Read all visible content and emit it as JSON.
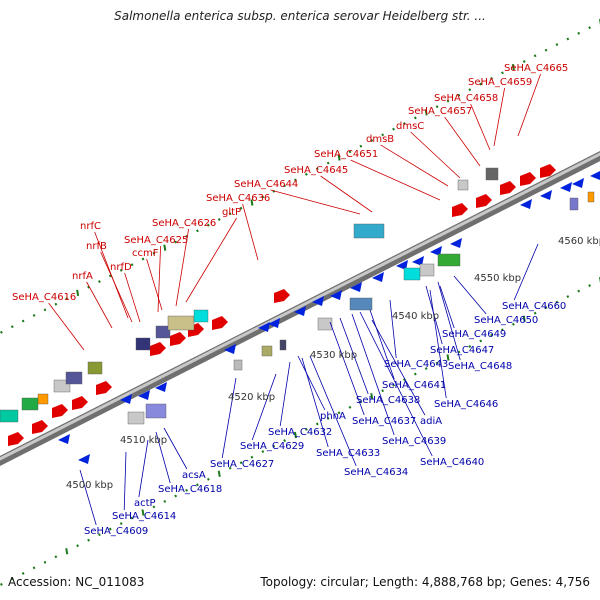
{
  "title": "Salmonella enterica subsp. enterica serovar Heidelberg str. ...",
  "footer": {
    "accession": "Accession: NC_011083",
    "summary": "Topology: circular; Length: 4,888,768 bp; Genes: 4,756"
  },
  "colors": {
    "upper_labels": "#cc0000",
    "lower_labels": "#0000aa",
    "backbone": "#9a9a9a",
    "ticks": "#1a7a1a"
  },
  "kbp_ticks": [
    "4500 kbp",
    "4510 kbp",
    "4520 kbp",
    "4530 kbp",
    "4540 kbp",
    "4550 kbp",
    "4560 kbp"
  ],
  "upper_labels": [
    "SeHA_C4616",
    "nrfA",
    "nrfD",
    "nrfB",
    "nrfC",
    "ccmF",
    "SeHA_C4625",
    "SeHA_C4626",
    "gltP",
    "SeHA_C4636",
    "SeHA_C4644",
    "SeHA_C4645",
    "SeHA_C4651",
    "dmsB",
    "dmsC",
    "SeHA_C4657",
    "SeHA_C4658",
    "SeHA_C4659",
    "SeHA_C4665"
  ],
  "lower_labels": [
    "SeHA_C4609",
    "SeHA_C4614",
    "actP",
    "SeHA_C4618",
    "acsA",
    "SeHA_C4627",
    "SeHA_C4629",
    "SeHA_C4632",
    "phnA",
    "SeHA_C4633",
    "SeHA_C4634",
    "SeHA_C4638",
    "SeHA_C4637",
    "SeHA_C4639",
    "adiA",
    "SeHA_C4640",
    "SeHA_C4641",
    "SeHA_C4643",
    "SeHA_C4647",
    "SeHA_C4648",
    "SeHA_C4646",
    "SeHA_C4649",
    "SeHA_C4650",
    "SeHA_C4660"
  ]
}
